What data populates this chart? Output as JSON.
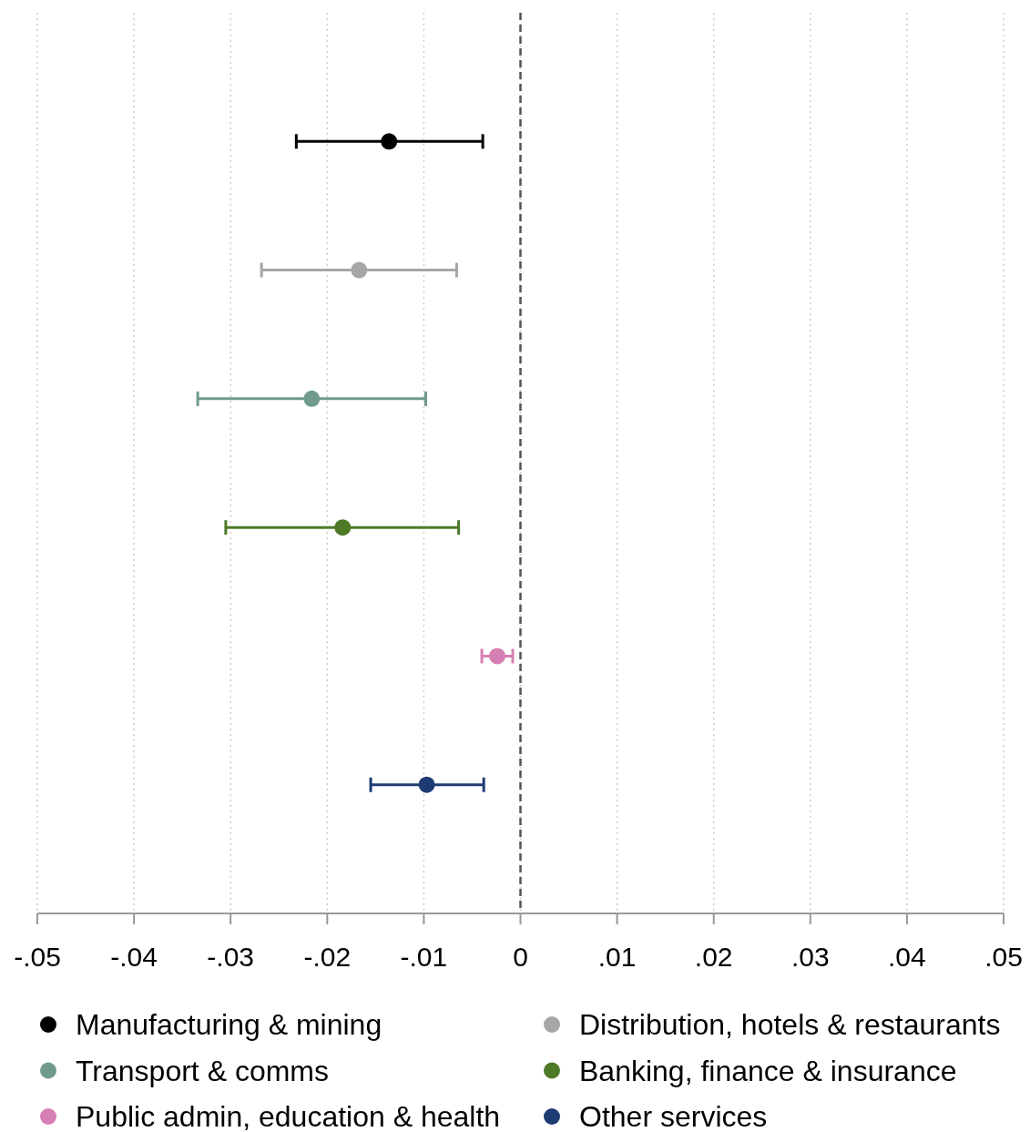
{
  "chart_data": {
    "type": "scatter",
    "orientation": "horizontal",
    "categories": [
      null,
      null,
      null,
      null,
      null,
      null
    ],
    "xlim": [
      -0.05,
      0.05
    ],
    "xticks": [
      {
        "value": -0.05,
        "label": "-.05"
      },
      {
        "value": -0.04,
        "label": "-.04"
      },
      {
        "value": -0.03,
        "label": "-.03"
      },
      {
        "value": -0.02,
        "label": "-.02"
      },
      {
        "value": -0.01,
        "label": "-.01"
      },
      0,
      {
        "value": 0.01,
        "label": ".01"
      },
      {
        "value": 0.02,
        "label": ".02"
      },
      {
        "value": 0.03,
        "label": ".03"
      },
      {
        "value": 0.04,
        "label": ".04"
      },
      {
        "value": 0.05,
        "label": ".05"
      }
    ],
    "tick_labels": "x",
    "grid": "x",
    "legend": "bottom",
    "marker": "circle",
    "ref_lines": [
      {
        "axis": "x",
        "value": 0,
        "color": "#555555",
        "line_style": "dashed"
      }
    ],
    "series": [
      {
        "name": "Manufacturing & mining",
        "color": "#000000",
        "values": [
          -0.0136,
          null,
          null,
          null,
          null,
          null
        ],
        "errors": [
          [
            -0.0232,
            -0.0039
          ],
          null,
          null,
          null,
          null,
          null
        ]
      },
      {
        "name": "Distribution, hotels & restaurants",
        "color": "#a6a6a6",
        "values": [
          null,
          -0.0167,
          null,
          null,
          null,
          null
        ],
        "errors": [
          null,
          [
            -0.0268,
            -0.0066
          ],
          null,
          null,
          null,
          null
        ]
      },
      {
        "name": "Transport & comms",
        "color": "#6f9a8d",
        "values": [
          null,
          null,
          -0.0216,
          null,
          null,
          null
        ],
        "errors": [
          null,
          null,
          [
            -0.0334,
            -0.0098
          ],
          null,
          null,
          null
        ]
      },
      {
        "name": "Banking, finance & insurance",
        "color": "#4e7a27",
        "values": [
          null,
          null,
          null,
          -0.0184,
          null,
          null
        ],
        "errors": [
          null,
          null,
          null,
          [
            -0.0305,
            -0.0064
          ],
          null,
          null
        ]
      },
      {
        "name": "Public admin, education & health",
        "color": "#d67fb4",
        "values": [
          null,
          null,
          null,
          null,
          -0.0024,
          null
        ],
        "errors": [
          null,
          null,
          null,
          null,
          [
            -0.004,
            -0.0008
          ],
          null
        ]
      },
      {
        "name": "Other services",
        "color": "#1f3b73",
        "values": [
          null,
          null,
          null,
          null,
          null,
          -0.0097
        ],
        "errors": [
          null,
          null,
          null,
          null,
          null,
          [
            -0.0155,
            -0.0038
          ]
        ]
      }
    ]
  }
}
